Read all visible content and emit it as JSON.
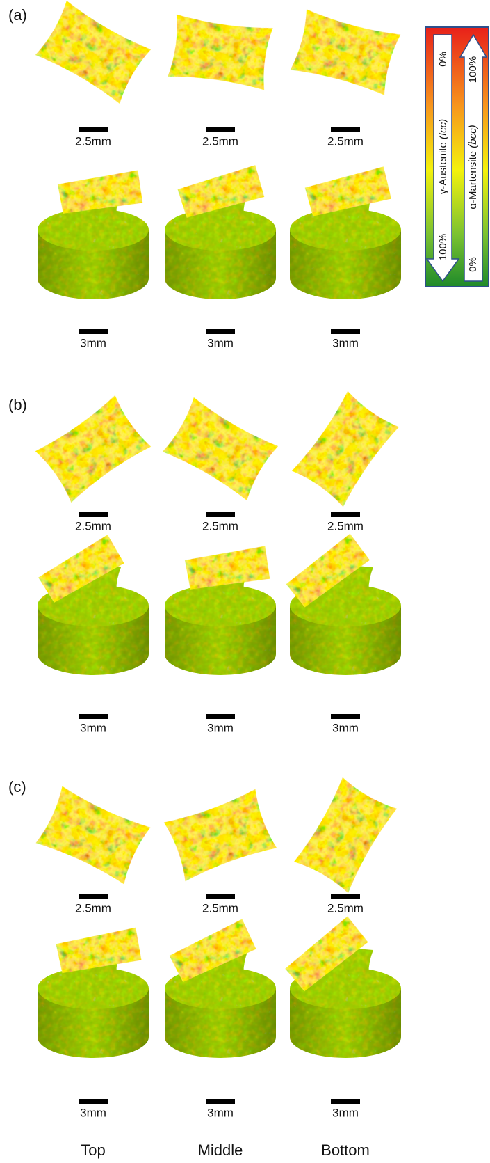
{
  "panels": [
    {
      "label": "(a)",
      "section_scale_bars": [
        "2.5mm",
        "2.5mm",
        "2.5mm"
      ],
      "specimen_scale_bars": [
        "3mm",
        "3mm",
        "3mm"
      ]
    },
    {
      "label": "(b)",
      "section_scale_bars": [
        "2.5mm",
        "2.5mm",
        "2.5mm"
      ],
      "specimen_scale_bars": [
        "3mm",
        "3mm",
        "3mm"
      ]
    },
    {
      "label": "(c)",
      "section_scale_bars": [
        "2.5mm",
        "2.5mm",
        "2.5mm"
      ],
      "specimen_scale_bars": [
        "3mm",
        "3mm",
        "3mm"
      ]
    }
  ],
  "columns": [
    "Top",
    "Middle",
    "Bottom"
  ],
  "colorbar": {
    "austenite": {
      "name": "γ-Austenite",
      "structure": "(fcc)",
      "top": "0%",
      "bottom": "100%"
    },
    "martensite": {
      "name": "α-Martensite",
      "structure": "(bcc)",
      "top": "100%",
      "bottom": "0%"
    }
  }
}
